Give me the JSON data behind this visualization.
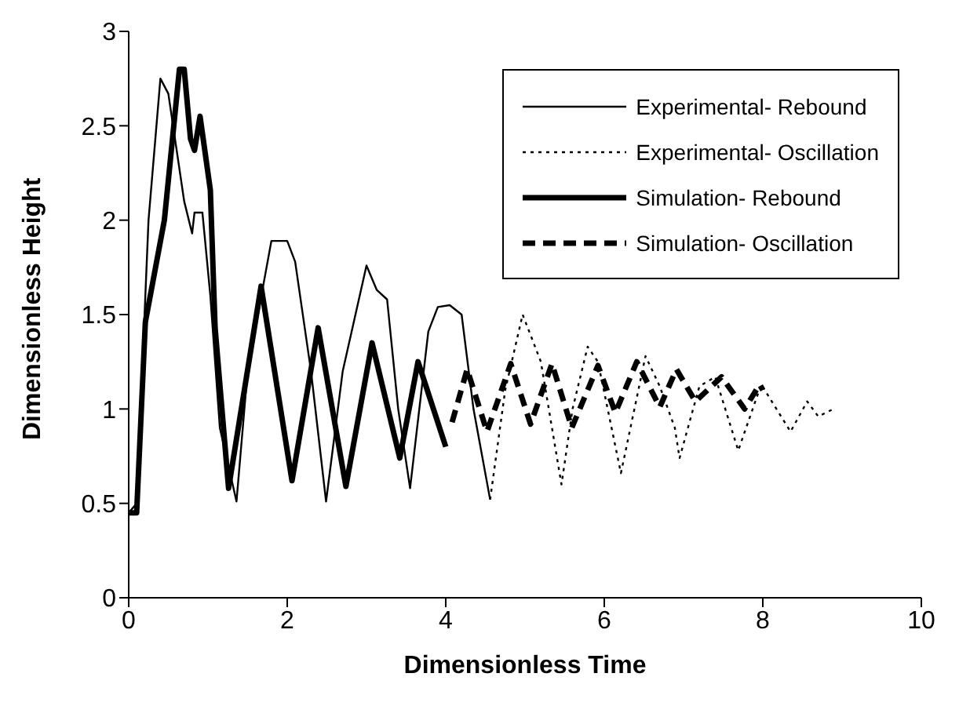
{
  "chart_data": {
    "type": "line",
    "xlabel": "Dimensionless  Time",
    "ylabel": "Dimensionless Height",
    "xlim": [
      0,
      10
    ],
    "ylim": [
      0,
      3
    ],
    "xticks": [
      0,
      2,
      4,
      6,
      8,
      10
    ],
    "yticks": [
      0,
      0.5,
      1,
      1.5,
      2,
      2.5,
      3
    ],
    "grid": false,
    "legend": "top right",
    "marker": "none",
    "series": [
      {
        "name": "Experimental- Rebound",
        "color": "#000000",
        "line_style": "solid",
        "x": [
          0,
          0.1,
          0.25,
          0.4,
          0.5,
          0.7,
          0.8,
          0.83,
          0.93,
          1.03,
          1.15,
          1.36,
          1.5,
          1.8,
          2.0,
          2.1,
          2.3,
          2.49,
          2.7,
          3.0,
          3.13,
          3.26,
          3.4,
          3.55,
          3.78,
          3.9,
          4.05,
          4.2,
          4.35,
          4.56
        ],
        "values": [
          0.45,
          0.5,
          2.0,
          2.75,
          2.67,
          2.1,
          1.93,
          2.04,
          2.04,
          1.6,
          0.9,
          0.51,
          1.2,
          1.89,
          1.89,
          1.78,
          1.2,
          0.51,
          1.2,
          1.76,
          1.63,
          1.58,
          1.0,
          0.58,
          1.41,
          1.54,
          1.55,
          1.5,
          1.0,
          0.52
        ]
      },
      {
        "name": "Experimental- Oscillation",
        "color": "#000000",
        "line_style": "dotted",
        "x": [
          4.56,
          4.75,
          4.97,
          5.2,
          5.46,
          5.6,
          5.79,
          5.92,
          6.21,
          6.52,
          6.7,
          6.89,
          6.95,
          7.2,
          7.4,
          7.69,
          7.98,
          8.35,
          8.56,
          8.7,
          8.89
        ],
        "values": [
          0.52,
          1.1,
          1.5,
          1.25,
          0.6,
          1.0,
          1.33,
          1.25,
          0.66,
          1.28,
          1.12,
          0.9,
          0.74,
          1.12,
          1.17,
          0.78,
          1.13,
          0.88,
          1.04,
          0.96,
          1.0
        ]
      },
      {
        "name": "Simulation- Rebound",
        "color": "#000000",
        "line_style": "solid",
        "x": [
          0,
          0.1,
          0.21,
          0.45,
          0.64,
          0.7,
          0.78,
          0.83,
          0.9,
          1.03,
          1.09,
          1.26,
          1.67,
          2.06,
          2.39,
          2.74,
          3.07,
          3.42,
          3.65,
          4.0
        ],
        "values": [
          0.45,
          0.45,
          1.46,
          2.0,
          2.8,
          2.8,
          2.43,
          2.37,
          2.55,
          2.16,
          1.43,
          0.58,
          1.65,
          0.62,
          1.43,
          0.59,
          1.35,
          0.74,
          1.25,
          0.8
        ]
      },
      {
        "name": "Simulation- Oscillation",
        "color": "#000000",
        "line_style": "dashed",
        "x": [
          4.08,
          4.27,
          4.52,
          4.82,
          5.07,
          5.34,
          5.59,
          5.92,
          6.14,
          6.41,
          6.7,
          6.91,
          7.15,
          7.48,
          7.77,
          7.96,
          8.0
        ],
        "values": [
          0.93,
          1.21,
          0.88,
          1.24,
          0.92,
          1.24,
          0.9,
          1.23,
          0.98,
          1.25,
          1.01,
          1.21,
          1.04,
          1.17,
          1.0,
          1.13,
          1.1
        ]
      }
    ]
  }
}
